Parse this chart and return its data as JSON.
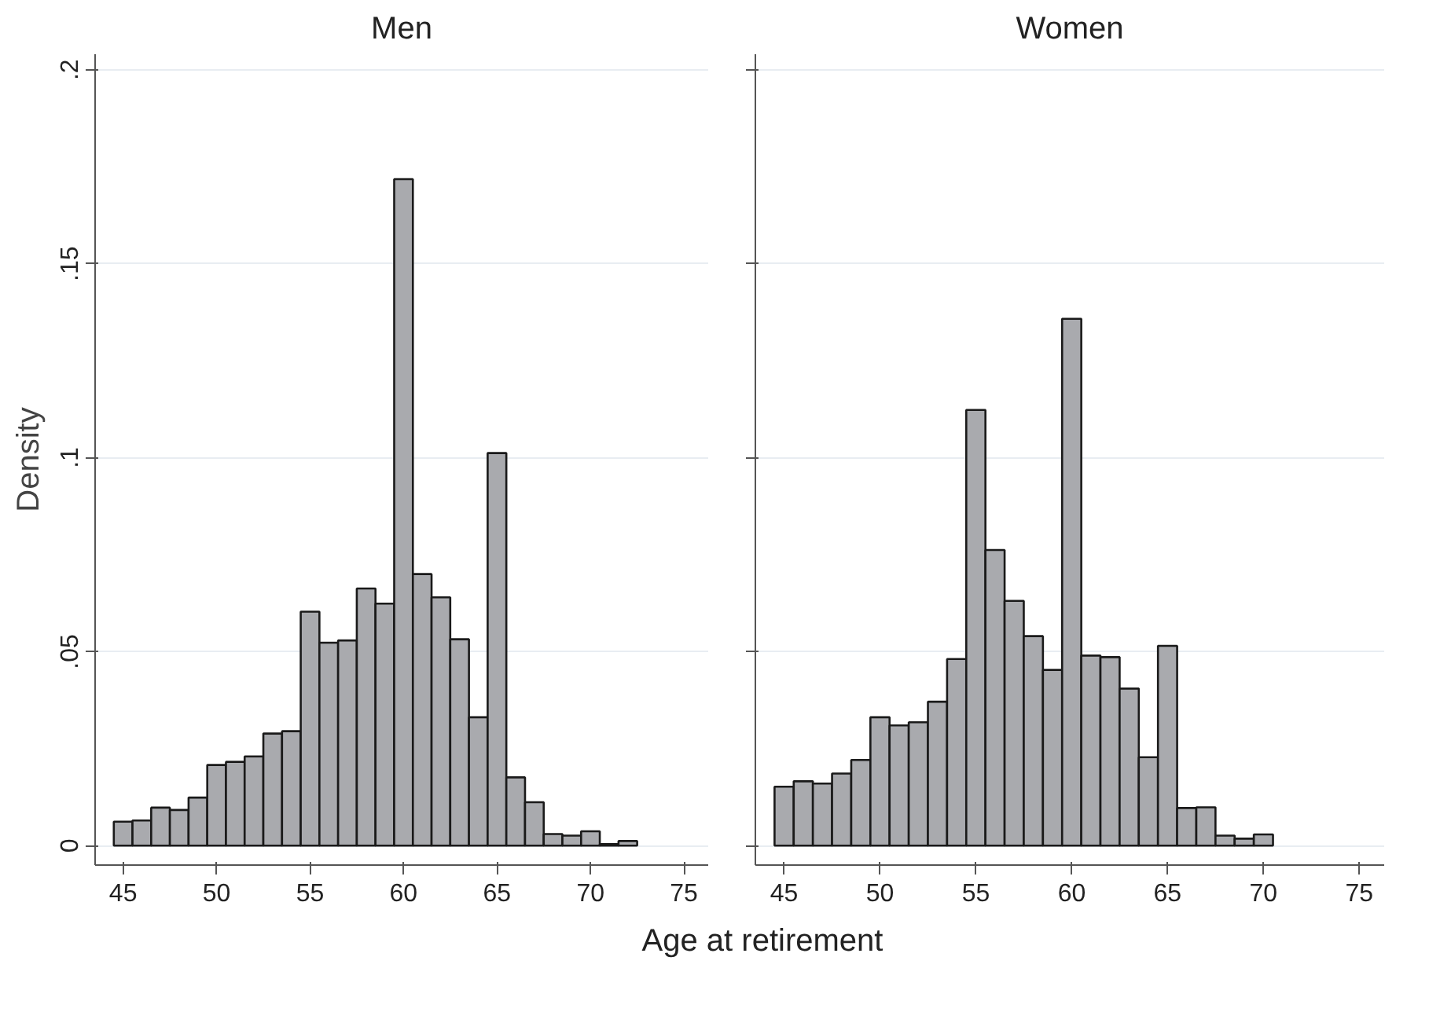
{
  "chart_data": [
    {
      "type": "histogram",
      "title": "Men",
      "ylabel": "Density",
      "xlabel": "Age at retirement",
      "color": "#a9aaae",
      "bins": [
        44.5,
        45.5,
        46.5,
        47.5,
        48.5,
        49.5,
        50.5,
        51.5,
        52.5,
        53.5,
        54.5,
        55.5,
        56.5,
        57.5,
        58.5,
        59.5,
        60.5,
        61.5,
        62.5,
        63.5,
        64.5,
        65.5,
        66.5,
        67.5,
        68.5,
        69.5,
        70.5,
        71.5,
        72.5
      ],
      "values": [
        0.0062,
        0.0065,
        0.0098,
        0.0092,
        0.0124,
        0.0208,
        0.0216,
        0.023,
        0.0289,
        0.0295,
        0.0603,
        0.0523,
        0.0529,
        0.0663,
        0.0624,
        0.1718,
        0.07,
        0.064,
        0.0532,
        0.0331,
        0.1012,
        0.0176,
        0.0112,
        0.003,
        0.0026,
        0.0037,
        0.0004,
        0.0012
      ],
      "xlim": [
        43.5,
        76.3
      ],
      "xticks": [
        45,
        50,
        55,
        60,
        65,
        70,
        75
      ],
      "ylim": [
        -0.005,
        0.204
      ],
      "yticks": [
        {
          "value": 0,
          "label": "0"
        },
        {
          "value": 0.05,
          "label": ".05"
        },
        {
          "value": 0.1,
          "label": ".1"
        },
        {
          "value": 0.15,
          "label": ".15"
        },
        {
          "value": 0.2,
          "label": ".2"
        }
      ],
      "grid": "y"
    },
    {
      "type": "histogram",
      "title": "Women",
      "color": "#a9aaae",
      "bins": [
        44.5,
        45.5,
        46.5,
        47.5,
        48.5,
        49.5,
        50.5,
        51.5,
        52.5,
        53.5,
        54.5,
        55.5,
        56.5,
        57.5,
        58.5,
        59.5,
        60.5,
        61.5,
        62.5,
        63.5,
        64.5,
        65.5,
        66.5,
        67.5,
        68.5,
        69.5,
        70.5
      ],
      "values": [
        0.0152,
        0.0166,
        0.016,
        0.0186,
        0.0221,
        0.0331,
        0.031,
        0.0318,
        0.0371,
        0.0481,
        0.1123,
        0.0762,
        0.0631,
        0.054,
        0.0453,
        0.1358,
        0.049,
        0.0486,
        0.0405,
        0.0228,
        0.0515,
        0.0097,
        0.0099,
        0.0026,
        0.0018,
        0.0029
      ],
      "xlim": [
        43.5,
        76.3
      ],
      "xticks": [
        45,
        50,
        55,
        60,
        65,
        70,
        75
      ],
      "ylim": [
        -0.005,
        0.204
      ],
      "yticks": [
        {
          "value": 0,
          "label": null
        },
        {
          "value": 0.05,
          "label": null
        },
        {
          "value": 0.1,
          "label": null
        },
        {
          "value": 0.15,
          "label": null
        },
        {
          "value": 0.2,
          "label": null
        }
      ],
      "grid": "y",
      "tick_labels": "x"
    }
  ]
}
